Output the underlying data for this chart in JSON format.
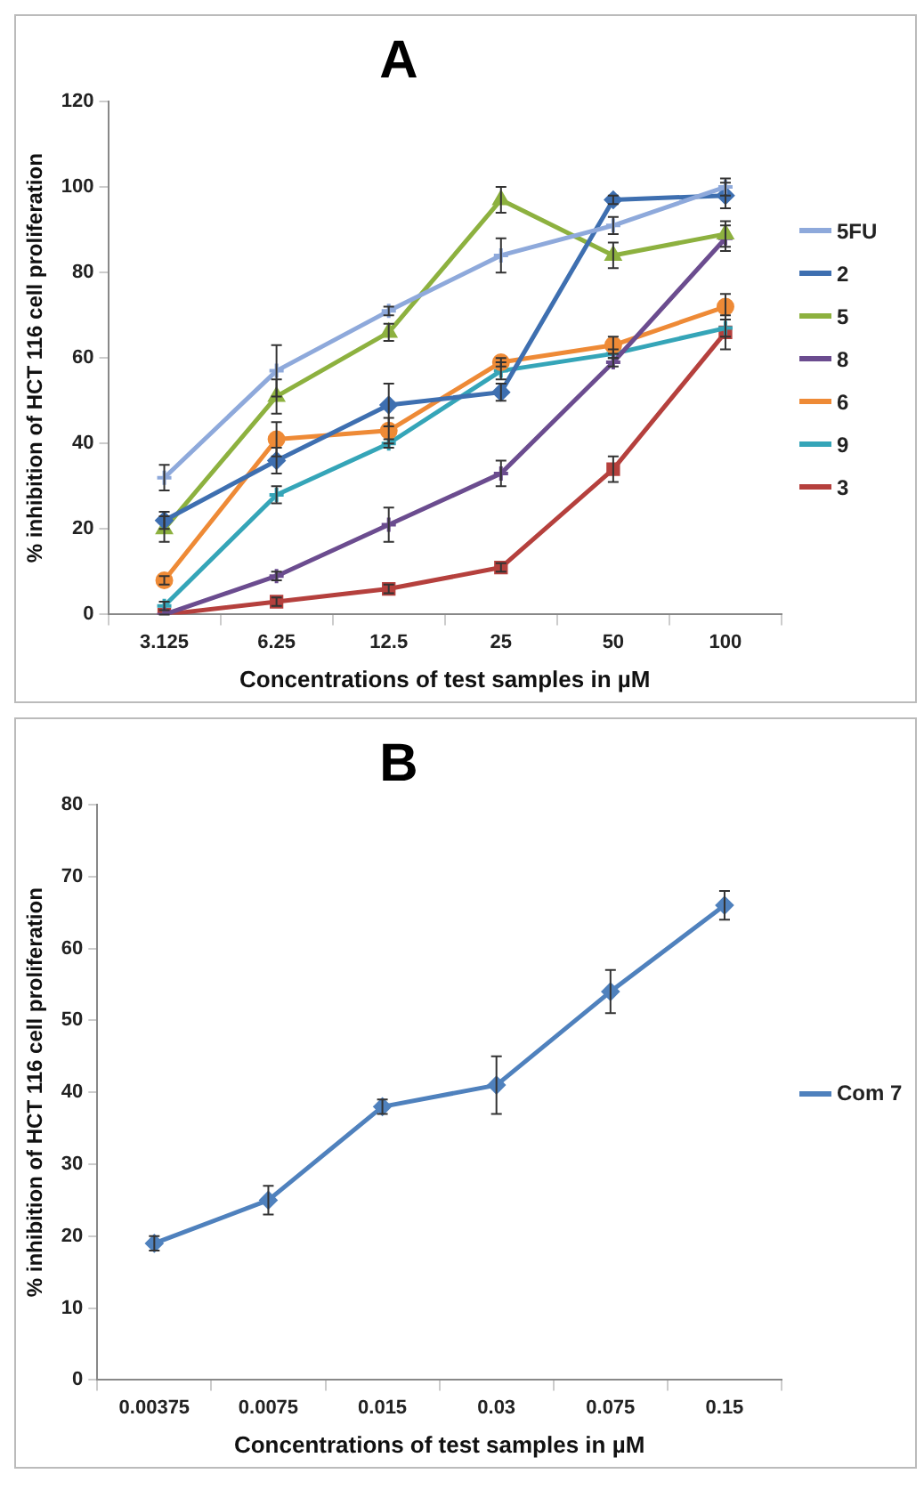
{
  "chart_data": [
    {
      "type": "line",
      "title": "A",
      "xlabel": "Concentrations of test samples in µM",
      "ylabel": "% inhibition of HCT 116 cell proliferation",
      "categories": [
        "3.125",
        "6.25",
        "12.5",
        "25",
        "50",
        "100"
      ],
      "ylim": [
        0,
        120
      ],
      "yticks": [
        0,
        20,
        40,
        60,
        80,
        100,
        120
      ],
      "grid": false,
      "legend": "right",
      "series": [
        {
          "name": "5FU",
          "color": "#8ea9db",
          "marker": "cross",
          "values": [
            32,
            57,
            71,
            84,
            91,
            100
          ],
          "errors": [
            3,
            6,
            1,
            4,
            2,
            2
          ]
        },
        {
          "name": "2",
          "color": "#3e6fb0",
          "marker": "diamond",
          "values": [
            22,
            36,
            49,
            52,
            97,
            98
          ],
          "errors": [
            2,
            3,
            5,
            2,
            1,
            3
          ]
        },
        {
          "name": "5",
          "color": "#8db13f",
          "marker": "triangle",
          "values": [
            20,
            51,
            66,
            97,
            84,
            89
          ],
          "errors": [
            3,
            4,
            2,
            3,
            3,
            3
          ]
        },
        {
          "name": "8",
          "color": "#6b4c8f",
          "marker": "cross",
          "values": [
            0,
            9,
            21,
            33,
            59,
            88
          ],
          "errors": [
            null,
            1,
            4,
            3,
            1,
            3
          ]
        },
        {
          "name": "6",
          "color": "#ee8a36",
          "marker": "circle",
          "values": [
            8,
            41,
            43,
            59,
            63,
            72
          ],
          "errors": [
            1,
            4,
            3,
            1,
            2,
            3
          ]
        },
        {
          "name": "9",
          "color": "#35a5b8",
          "marker": "cross",
          "values": [
            2,
            28,
            40,
            57,
            61,
            67
          ],
          "errors": [
            1,
            2,
            1,
            2,
            1,
            2
          ]
        },
        {
          "name": "3",
          "color": "#b5403d",
          "marker": "square",
          "values": [
            0,
            3,
            6,
            11,
            34,
            66
          ],
          "errors": [
            0,
            1,
            1,
            1,
            3,
            4
          ]
        }
      ]
    },
    {
      "type": "line",
      "title": "B",
      "xlabel": "Concentrations of test samples in µM",
      "ylabel": "% inhibition of HCT 116 cell proliferation",
      "categories": [
        "0.00375",
        "0.0075",
        "0.015",
        "0.03",
        "0.075",
        "0.15"
      ],
      "ylim": [
        0,
        80
      ],
      "yticks": [
        0,
        10,
        20,
        30,
        40,
        50,
        60,
        70,
        80
      ],
      "grid": false,
      "legend": "right",
      "series": [
        {
          "name": "Com 7",
          "color": "#4f81bd",
          "marker": "diamond",
          "values": [
            19,
            25,
            38,
            41,
            54,
            66
          ],
          "errors": [
            1,
            2,
            1,
            4,
            3,
            2
          ]
        }
      ]
    }
  ]
}
